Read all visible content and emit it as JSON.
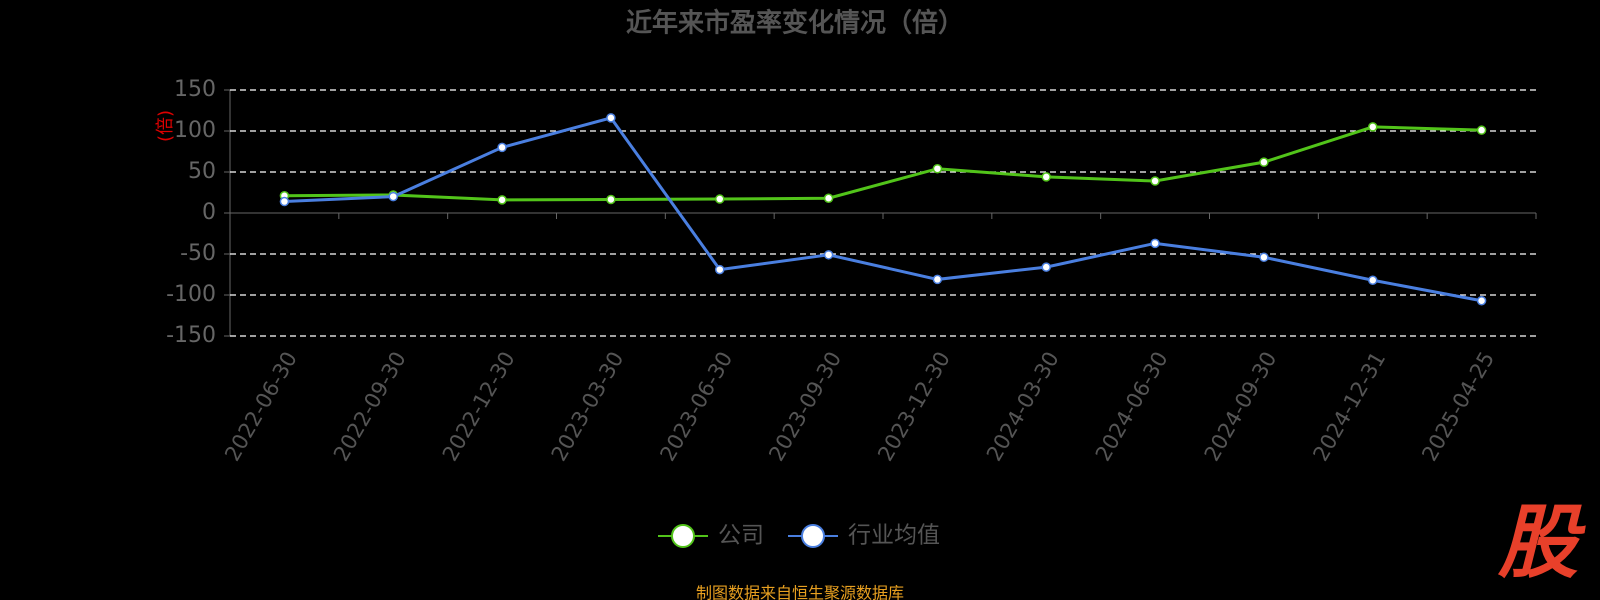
{
  "chart_data": {
    "type": "line",
    "title": "近年来市盈率变化情况（倍）",
    "y_label": "(倍)",
    "categories": [
      "2022-06-30",
      "2022-09-30",
      "2022-12-30",
      "2023-03-30",
      "2023-06-30",
      "2023-09-30",
      "2023-12-30",
      "2024-03-30",
      "2024-06-30",
      "2024-09-30",
      "2024-12-31",
      "2025-04-25"
    ],
    "series": [
      {
        "name": "公司",
        "color": "#52c41a",
        "values": [
          21,
          22,
          16,
          16.5,
          17,
          18,
          54,
          44,
          39,
          62,
          105,
          101
        ]
      },
      {
        "name": "行业均值",
        "color": "#4a7fe0",
        "values": [
          14,
          20,
          80,
          116,
          -69,
          -51,
          -81,
          -66,
          -37,
          -54,
          -82,
          -107
        ]
      }
    ],
    "ylim": [
      -150,
      150
    ],
    "yticks": [
      -150,
      -100,
      -50,
      0,
      50,
      100,
      150
    ],
    "grid": true,
    "source": "制图数据来自恒生聚源数据库",
    "logo": "股"
  }
}
